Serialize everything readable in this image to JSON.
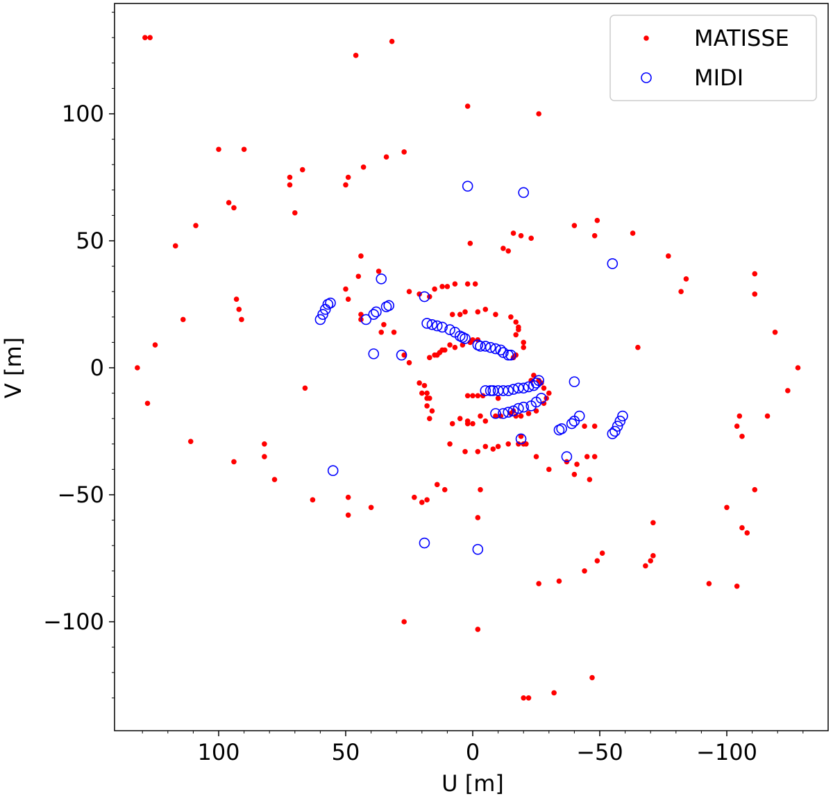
{
  "chart_data": {
    "type": "scatter",
    "xlabel": "U [m]",
    "ylabel": "V [m]",
    "x_reversed": true,
    "xlim": [
      140,
      -140
    ],
    "ylim": [
      -140,
      143
    ],
    "x_ticks": [
      100,
      50,
      0,
      -50,
      -100
    ],
    "y_ticks": [
      100,
      50,
      0,
      -50,
      -100
    ],
    "grid": false,
    "legend_position": "top-right",
    "colors": {
      "matisse": "#ff0000",
      "midi": "#0000ff"
    },
    "series": [
      {
        "name": "MATISSE",
        "marker": "filled-dot",
        "points": [
          [
            129,
            130
          ],
          [
            127,
            130
          ],
          [
            31.8,
            128.5
          ],
          [
            46,
            123
          ],
          [
            2,
            103
          ],
          [
            -26,
            100
          ],
          [
            100,
            86
          ],
          [
            90,
            86
          ],
          [
            27,
            85
          ],
          [
            34,
            83
          ],
          [
            43,
            79
          ],
          [
            67,
            78
          ],
          [
            72,
            75
          ],
          [
            72,
            72
          ],
          [
            70,
            61
          ],
          [
            96,
            65
          ],
          [
            94,
            63
          ],
          [
            49,
            75
          ],
          [
            50,
            72
          ],
          [
            109,
            56
          ],
          [
            117,
            48
          ],
          [
            1,
            49
          ],
          [
            -16,
            53
          ],
          [
            -19,
            52
          ],
          [
            -23,
            51
          ],
          [
            -12,
            47
          ],
          [
            -14,
            46
          ],
          [
            -40,
            56
          ],
          [
            -49,
            58
          ],
          [
            -48,
            52
          ],
          [
            -63,
            53
          ],
          [
            -77,
            44
          ],
          [
            -84,
            35
          ],
          [
            -82,
            30
          ],
          [
            -111,
            37
          ],
          [
            -111,
            29
          ],
          [
            -119,
            14
          ],
          [
            -128,
            0
          ],
          [
            -65,
            8
          ],
          [
            -124,
            -9
          ],
          [
            -116,
            -19
          ],
          [
            -105,
            -19
          ],
          [
            -104,
            -23
          ],
          [
            -106,
            -27
          ],
          [
            -111,
            -48
          ],
          [
            -100,
            -55
          ],
          [
            -106,
            -63
          ],
          [
            -108,
            -65
          ],
          [
            -71,
            -61
          ],
          [
            -71,
            -74
          ],
          [
            -70,
            -76
          ],
          [
            -68,
            -78
          ],
          [
            -51,
            -73
          ],
          [
            -49,
            -76
          ],
          [
            -44,
            -80
          ],
          [
            -34,
            -84
          ],
          [
            -26,
            -85
          ],
          [
            -93,
            -85
          ],
          [
            -104,
            -86
          ],
          [
            93,
            27
          ],
          [
            92,
            23
          ],
          [
            91,
            19
          ],
          [
            114,
            19
          ],
          [
            125,
            9
          ],
          [
            128,
            -14
          ],
          [
            132,
            0
          ],
          [
            66,
            -8
          ],
          [
            111,
            -29
          ],
          [
            94,
            -37
          ],
          [
            82,
            -30
          ],
          [
            82,
            -35
          ],
          [
            78,
            -44
          ],
          [
            63,
            -52
          ],
          [
            49,
            -51
          ],
          [
            49,
            -58
          ],
          [
            40,
            -55
          ],
          [
            23,
            -51
          ],
          [
            20,
            -53
          ],
          [
            18,
            -52
          ],
          [
            -3,
            -48
          ],
          [
            -2,
            -59
          ],
          [
            27,
            -100
          ],
          [
            -2,
            -103
          ],
          [
            -47,
            -122
          ],
          [
            -32,
            -128
          ],
          [
            -20,
            -130
          ],
          [
            -22,
            -130
          ],
          [
            14,
            -46
          ],
          [
            11,
            -48
          ],
          [
            -46,
            -44
          ],
          [
            -41,
            -38
          ],
          [
            -45,
            -35
          ],
          [
            -48,
            -35
          ],
          [
            -48,
            -23
          ],
          [
            -44,
            -23
          ],
          [
            44,
            44
          ],
          [
            37,
            38
          ],
          [
            45,
            36
          ],
          [
            50,
            31
          ],
          [
            49,
            27
          ],
          [
            44,
            21
          ],
          [
            44,
            19
          ],
          [
            35,
            17
          ],
          [
            36,
            14
          ],
          [
            31,
            14
          ],
          [
            25,
            30
          ],
          [
            21,
            29
          ],
          [
            15,
            31
          ],
          [
            12,
            32
          ],
          [
            10,
            32
          ],
          [
            7,
            33
          ],
          [
            2,
            33
          ],
          [
            -1,
            33
          ],
          [
            17,
            28
          ],
          [
            8,
            21
          ],
          [
            5,
            21
          ],
          [
            3,
            22
          ],
          [
            -5,
            23
          ],
          [
            -2,
            22
          ],
          [
            -9,
            21
          ],
          [
            -15,
            20
          ],
          [
            -17,
            18
          ],
          [
            -18,
            16
          ],
          [
            -18,
            15
          ],
          [
            -17,
            13
          ],
          [
            -20,
            10
          ],
          [
            -20,
            8
          ],
          [
            -17,
            5
          ],
          [
            -16,
            4
          ],
          [
            0,
            11
          ],
          [
            -2,
            11
          ],
          [
            1,
            10
          ],
          [
            4,
            9
          ],
          [
            7,
            8
          ],
          [
            9,
            9
          ],
          [
            11,
            7
          ],
          [
            12,
            7
          ],
          [
            13,
            6
          ],
          [
            14,
            5
          ],
          [
            15,
            5
          ],
          [
            17,
            4
          ],
          [
            27,
            5
          ],
          [
            25,
            2
          ],
          [
            19,
            -7
          ],
          [
            21,
            -6
          ],
          [
            20,
            -10
          ],
          [
            18,
            -10
          ],
          [
            18,
            -12
          ],
          [
            17,
            -12
          ],
          [
            18,
            -15
          ],
          [
            16,
            -17
          ],
          [
            17,
            -20
          ],
          [
            0,
            -11
          ],
          [
            -2,
            -11
          ],
          [
            -4,
            -11
          ],
          [
            2,
            -11
          ],
          [
            -24,
            -3
          ],
          [
            -26,
            -5
          ],
          [
            -27,
            -6
          ],
          [
            -28,
            -8
          ],
          [
            -30,
            -10
          ],
          [
            -29,
            -12
          ],
          [
            -28,
            -14
          ],
          [
            -25,
            -17
          ],
          [
            -22,
            -18
          ],
          [
            -19,
            -19
          ],
          [
            -17,
            -19
          ],
          [
            5,
            -20
          ],
          [
            2,
            -21
          ],
          [
            0,
            -22
          ],
          [
            -5,
            -21
          ],
          [
            -9,
            -19
          ],
          [
            -11,
            -19
          ],
          [
            -15,
            -18
          ],
          [
            -16,
            -17
          ],
          [
            8,
            -22
          ],
          [
            2,
            -22
          ],
          [
            -5,
            -31
          ],
          [
            -8,
            -32
          ],
          [
            -10,
            -31
          ],
          [
            -14,
            -30
          ],
          [
            -18,
            -30
          ],
          [
            -20,
            -30
          ],
          [
            -21,
            -30
          ],
          [
            -19,
            -27
          ],
          [
            3,
            -33
          ],
          [
            -2,
            -33
          ],
          [
            9,
            -30
          ],
          [
            -23,
            -5
          ],
          [
            -10,
            -12
          ],
          [
            -3,
            -19
          ],
          [
            -25,
            -35
          ],
          [
            -30,
            -40
          ],
          [
            -37,
            -37
          ],
          [
            -40,
            -42
          ]
        ]
      },
      {
        "name": "MIDI",
        "marker": "open-circle",
        "points": [
          [
            2,
            71.5
          ],
          [
            -20,
            69
          ],
          [
            -55,
            41
          ],
          [
            36,
            35
          ],
          [
            19,
            28
          ],
          [
            60,
            19
          ],
          [
            59,
            21
          ],
          [
            58,
            23
          ],
          [
            57,
            25
          ],
          [
            56,
            25.5
          ],
          [
            42,
            19
          ],
          [
            39,
            21
          ],
          [
            38,
            22
          ],
          [
            34,
            24
          ],
          [
            33,
            24.5
          ],
          [
            18,
            17.5
          ],
          [
            16,
            17
          ],
          [
            14,
            16.5
          ],
          [
            12,
            16
          ],
          [
            9,
            15
          ],
          [
            7,
            14
          ],
          [
            5,
            12.5
          ],
          [
            4,
            12
          ],
          [
            3,
            11.5
          ],
          [
            -2,
            9
          ],
          [
            -3,
            8.5
          ],
          [
            -5,
            8.5
          ],
          [
            -7,
            8
          ],
          [
            -9,
            7.5
          ],
          [
            -11,
            7
          ],
          [
            -12,
            6
          ],
          [
            -14,
            5
          ],
          [
            -15,
            5
          ],
          [
            39,
            5.5
          ],
          [
            28,
            5
          ],
          [
            -26,
            -5
          ],
          [
            -40,
            -5.5
          ],
          [
            -25,
            -6
          ],
          [
            -24,
            -7
          ],
          [
            -22,
            -7.5
          ],
          [
            -20,
            -8
          ],
          [
            -18,
            -8
          ],
          [
            -16,
            -8.5
          ],
          [
            -14,
            -9
          ],
          [
            -12,
            -9
          ],
          [
            -10,
            -9
          ],
          [
            -8,
            -9
          ],
          [
            -7,
            -9
          ],
          [
            -5,
            -9
          ],
          [
            -27,
            -12
          ],
          [
            -25,
            -13.5
          ],
          [
            -23,
            -15
          ],
          [
            -20,
            -15.5
          ],
          [
            -18,
            -16
          ],
          [
            -16,
            -17
          ],
          [
            -14,
            -17.5
          ],
          [
            -12,
            -18
          ],
          [
            -9,
            -18
          ],
          [
            -59,
            -19
          ],
          [
            -58,
            -21
          ],
          [
            -57,
            -23
          ],
          [
            -56,
            -25
          ],
          [
            -55,
            -26
          ],
          [
            -42,
            -19
          ],
          [
            -40,
            -21
          ],
          [
            -39,
            -22
          ],
          [
            -35,
            -24
          ],
          [
            -34,
            -24.5
          ],
          [
            -19,
            -28
          ],
          [
            -37,
            -35
          ],
          [
            55,
            -40.5
          ],
          [
            19,
            -69
          ],
          [
            -2,
            -71.5
          ]
        ]
      }
    ]
  }
}
